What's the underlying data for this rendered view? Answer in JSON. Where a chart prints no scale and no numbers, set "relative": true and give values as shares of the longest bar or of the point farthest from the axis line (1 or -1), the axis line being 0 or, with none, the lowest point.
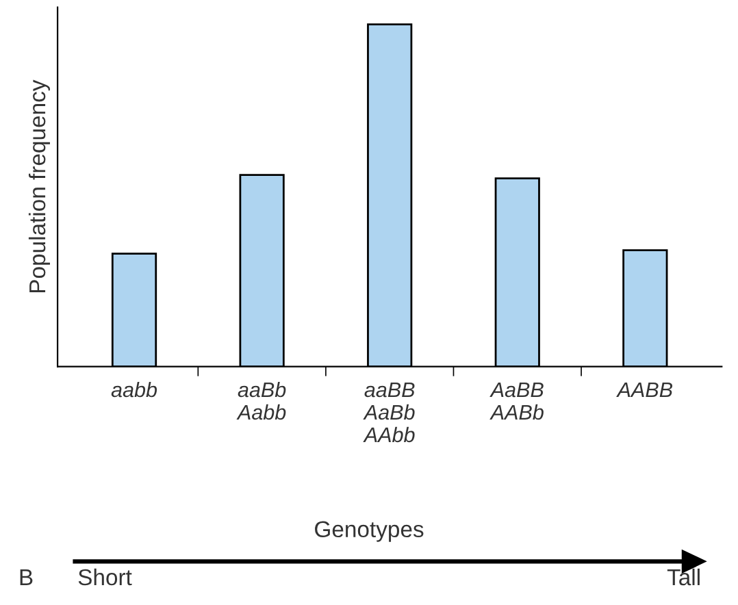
{
  "chart_data": {
    "type": "bar",
    "relative": true,
    "categories": [
      "aabb",
      "aaBb\nAabb",
      "aaBB\nAaBb\nAAbb",
      "AaBB\nAABb",
      "AABB"
    ],
    "values": [
      0.33,
      0.56,
      1,
      0.55,
      0.34
    ],
    "color": "#aed4f0",
    "xlabel": "Genotypes",
    "ylabel": "Population frequency",
    "annotations": [
      "B",
      "Short",
      "Tall"
    ],
    "grid": false,
    "legend": false
  }
}
